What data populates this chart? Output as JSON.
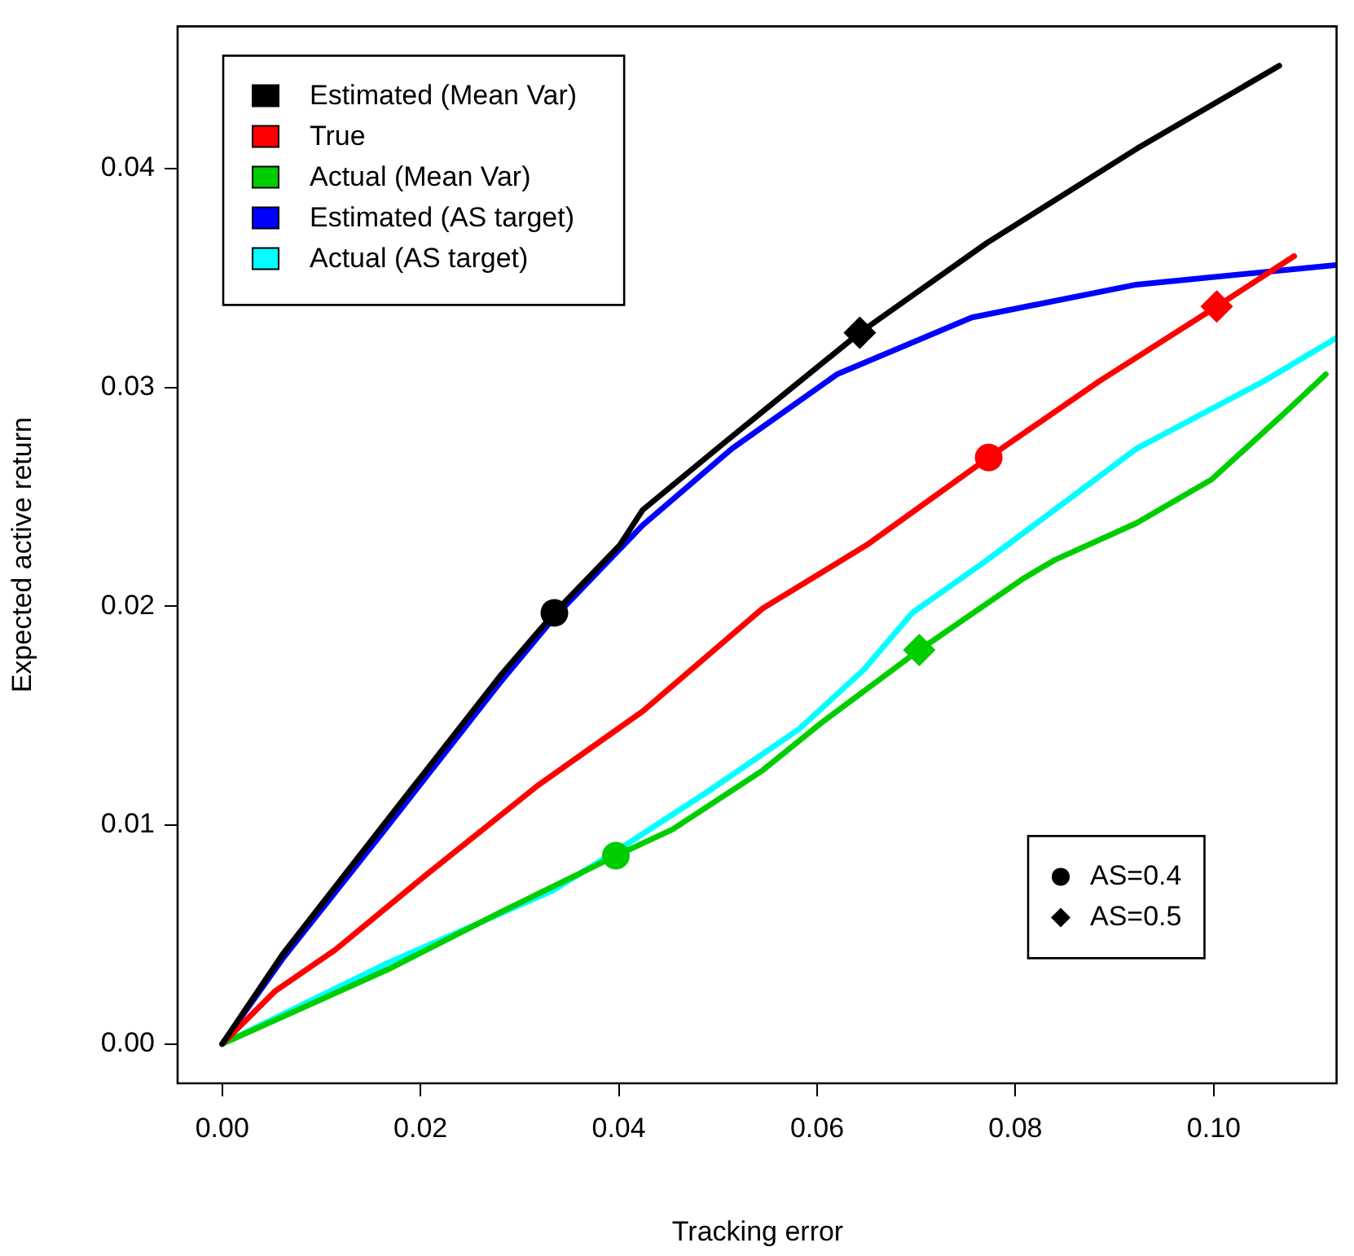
{
  "chart_data": {
    "type": "line",
    "xlabel": "Tracking error",
    "ylabel": "Expected active return",
    "xlim": [
      -0.0045,
      0.1125
    ],
    "ylim": [
      -0.0018,
      0.0465
    ],
    "xticks": [
      {
        "value": 0,
        "label": "0.00"
      },
      {
        "value": 0.02,
        "label": "0.02"
      },
      {
        "value": 0.04,
        "label": "0.04"
      },
      {
        "value": 0.06,
        "label": "0.06"
      },
      {
        "value": 0.08,
        "label": "0.08"
      },
      {
        "value": 0.1,
        "label": "0.10"
      }
    ],
    "yticks": [
      {
        "value": 0,
        "label": "0.00"
      },
      {
        "value": 0.01,
        "label": "0.01"
      },
      {
        "value": 0.02,
        "label": "0.02"
      },
      {
        "value": 0.03,
        "label": "0.03"
      },
      {
        "value": 0.04,
        "label": "0.04"
      }
    ],
    "grid": false,
    "legend": "top left",
    "marker": "none",
    "line_style": "solid",
    "series": [
      {
        "name": "Estimated (Mean Var)",
        "color": "#000000",
        "x": [
          0,
          0.0061,
          0.0159,
          0.028,
          0.0335,
          0.0401,
          0.0424,
          0.0507,
          0.0643,
          0.0771,
          0.0922,
          0.1066
        ],
        "values": [
          0,
          0.0041,
          0.0098,
          0.0168,
          0.0197,
          0.0228,
          0.0244,
          0.0275,
          0.0325,
          0.0366,
          0.0409,
          0.0447
        ]
      },
      {
        "name": "True",
        "color": "#ff0000",
        "x": [
          0,
          0.0053,
          0.0114,
          0.0205,
          0.0318,
          0.0424,
          0.0545,
          0.065,
          0.0773,
          0.0885,
          0.1003,
          0.1081
        ],
        "values": [
          0,
          0.0024,
          0.0043,
          0.0077,
          0.0118,
          0.0152,
          0.0199,
          0.0228,
          0.0268,
          0.0303,
          0.0337,
          0.036
        ]
      },
      {
        "name": "Actual (Mean Var)",
        "color": "#00cd00",
        "x": [
          0,
          0.0167,
          0.028,
          0.0397,
          0.0454,
          0.0545,
          0.0605,
          0.0703,
          0.0809,
          0.0839,
          0.0922,
          0.0998,
          0.1073,
          0.1113
        ],
        "values": [
          0,
          0.0034,
          0.006,
          0.0086,
          0.0098,
          0.0125,
          0.0147,
          0.018,
          0.0213,
          0.0221,
          0.0238,
          0.0258,
          0.0289,
          0.0306
        ]
      },
      {
        "name": "Estimated (AS target)",
        "color": "#0000ff",
        "x": [
          0,
          0.0061,
          0.0159,
          0.028,
          0.0335,
          0.0424,
          0.0514,
          0.062,
          0.0756,
          0.0922,
          0.1125
        ],
        "values": [
          0,
          0.0039,
          0.0095,
          0.0165,
          0.0195,
          0.0237,
          0.0272,
          0.0306,
          0.0332,
          0.0347,
          0.0356
        ]
      },
      {
        "name": "Actual (AS target)",
        "color": "#00ffff",
        "x": [
          0,
          0.0167,
          0.0333,
          0.0397,
          0.0492,
          0.0582,
          0.0647,
          0.0696,
          0.0771,
          0.0922,
          0.1051,
          0.1125
        ],
        "values": [
          0,
          0.0037,
          0.007,
          0.0088,
          0.0116,
          0.0144,
          0.0171,
          0.0197,
          0.0221,
          0.0272,
          0.0303,
          0.0323
        ]
      },
      {
        "name": "AS=0.4",
        "type": "scatter",
        "marker": "circle",
        "color": "#000000",
        "colors": [
          "#000000",
          "#ff0000",
          "#00cd00"
        ],
        "x": [
          0.0335,
          0.0773,
          0.0397
        ],
        "values": [
          0.0197,
          0.0268,
          0.0086
        ]
      },
      {
        "name": "AS=0.5",
        "type": "scatter",
        "marker": "diamond",
        "color": "#000000",
        "colors": [
          "#000000",
          "#ff0000",
          "#00cd00"
        ],
        "x": [
          0.0643,
          0.1003,
          0.0703
        ],
        "values": [
          0.0325,
          0.0337,
          0.018
        ]
      }
    ]
  }
}
